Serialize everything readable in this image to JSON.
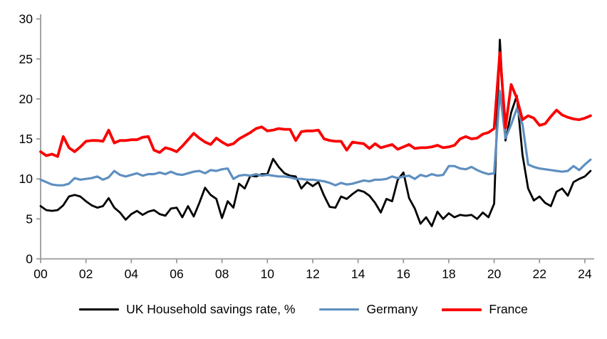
{
  "chart_data": {
    "type": "line",
    "title": "",
    "xlabel": "",
    "ylabel": "",
    "grid": false,
    "legend_position": "bottom",
    "axis_color": "#9a9a9a",
    "label_color": "#000000",
    "x_start_year": 2000,
    "x_step_years": 0.25,
    "x_axis": {
      "tick_labels": [
        "00",
        "02",
        "04",
        "06",
        "08",
        "10",
        "12",
        "14",
        "16",
        "18",
        "20",
        "22",
        "24"
      ],
      "tick_start_year": 2000,
      "tick_step_years": 2
    },
    "y_axis": {
      "min": 0,
      "max": 30,
      "tick_step": 5,
      "tick_labels": [
        "0",
        "5",
        "10",
        "15",
        "20",
        "25",
        "30"
      ]
    },
    "series": [
      {
        "name": "UK Household savings rate, %",
        "color": "#000000",
        "values": [
          6.6,
          6.1,
          6.0,
          6.1,
          6.7,
          7.8,
          8.0,
          7.8,
          7.2,
          6.7,
          6.4,
          6.6,
          7.6,
          6.4,
          5.8,
          4.9,
          5.6,
          6.0,
          5.5,
          5.9,
          6.1,
          5.6,
          5.4,
          6.3,
          6.4,
          5.2,
          6.6,
          5.3,
          7.0,
          8.9,
          8.0,
          7.5,
          5.1,
          7.2,
          6.4,
          9.4,
          8.8,
          10.4,
          10.3,
          10.6,
          10.6,
          12.5,
          11.5,
          10.7,
          10.4,
          10.3,
          8.8,
          9.6,
          9.1,
          9.6,
          7.9,
          6.5,
          6.4,
          7.8,
          7.5,
          8.1,
          8.6,
          8.4,
          7.9,
          7.0,
          5.8,
          7.5,
          7.2,
          9.9,
          10.8,
          7.6,
          6.3,
          4.4,
          5.2,
          4.1,
          5.9,
          5.0,
          5.7,
          5.2,
          5.5,
          5.4,
          5.5,
          5.0,
          5.8,
          5.2,
          6.9,
          27.4,
          14.8,
          18.3,
          20.4,
          13.0,
          8.8,
          7.3,
          7.8,
          7.0,
          6.6,
          8.4,
          8.8,
          7.9,
          9.6,
          10.0,
          10.3,
          11.0
        ]
      },
      {
        "name": "Germany",
        "color": "#5E8FC0",
        "values": [
          9.9,
          9.6,
          9.3,
          9.2,
          9.2,
          9.4,
          10.1,
          9.9,
          10.0,
          10.1,
          10.3,
          9.9,
          10.2,
          11.0,
          10.5,
          10.3,
          10.5,
          10.7,
          10.4,
          10.6,
          10.6,
          10.8,
          10.6,
          10.9,
          10.6,
          10.5,
          10.7,
          10.9,
          11.0,
          10.7,
          11.1,
          11.0,
          11.2,
          11.3,
          10.0,
          10.4,
          10.5,
          10.4,
          10.6,
          10.4,
          10.5,
          10.4,
          10.3,
          10.3,
          10.2,
          10.0,
          10.0,
          9.9,
          9.9,
          9.8,
          9.7,
          9.5,
          9.2,
          9.5,
          9.3,
          9.4,
          9.6,
          9.8,
          9.7,
          9.9,
          9.9,
          10.0,
          10.3,
          10.1,
          10.3,
          10.4,
          10.0,
          10.5,
          10.3,
          10.6,
          10.4,
          10.5,
          11.6,
          11.6,
          11.3,
          11.2,
          11.5,
          11.1,
          10.8,
          10.6,
          10.7,
          21.0,
          15.1,
          16.8,
          18.8,
          16.8,
          11.8,
          11.5,
          11.3,
          11.2,
          11.1,
          11.0,
          10.9,
          11.0,
          11.6,
          11.1,
          11.8,
          12.4
        ]
      },
      {
        "name": "France",
        "color": "#FB0000",
        "values": [
          13.4,
          12.9,
          13.1,
          12.8,
          15.3,
          13.9,
          13.4,
          14.0,
          14.7,
          14.8,
          14.8,
          14.7,
          16.1,
          14.5,
          14.8,
          14.8,
          14.9,
          14.9,
          15.2,
          15.3,
          13.6,
          13.3,
          13.9,
          13.7,
          13.4,
          14.1,
          14.9,
          15.7,
          15.1,
          14.6,
          14.3,
          15.1,
          14.6,
          14.2,
          14.4,
          15.0,
          15.4,
          15.8,
          16.3,
          16.5,
          16.0,
          16.1,
          16.3,
          16.2,
          16.2,
          14.8,
          15.9,
          16.0,
          16.0,
          16.1,
          15.0,
          14.8,
          14.7,
          14.7,
          13.6,
          14.6,
          14.5,
          14.4,
          13.8,
          14.4,
          13.9,
          14.1,
          14.3,
          13.7,
          14.0,
          14.3,
          13.8,
          13.9,
          13.9,
          14.0,
          14.2,
          13.9,
          14.0,
          14.2,
          15.0,
          15.3,
          15.0,
          15.1,
          15.6,
          15.8,
          16.3,
          25.8,
          16.4,
          21.8,
          20.1,
          17.4,
          17.9,
          17.6,
          16.7,
          16.9,
          17.8,
          18.6,
          18.0,
          17.7,
          17.5,
          17.4,
          17.6,
          17.9
        ]
      }
    ]
  },
  "legend": {
    "items": [
      {
        "label": "UK Household savings rate, %"
      },
      {
        "label": "Germany"
      },
      {
        "label": "France"
      }
    ]
  }
}
